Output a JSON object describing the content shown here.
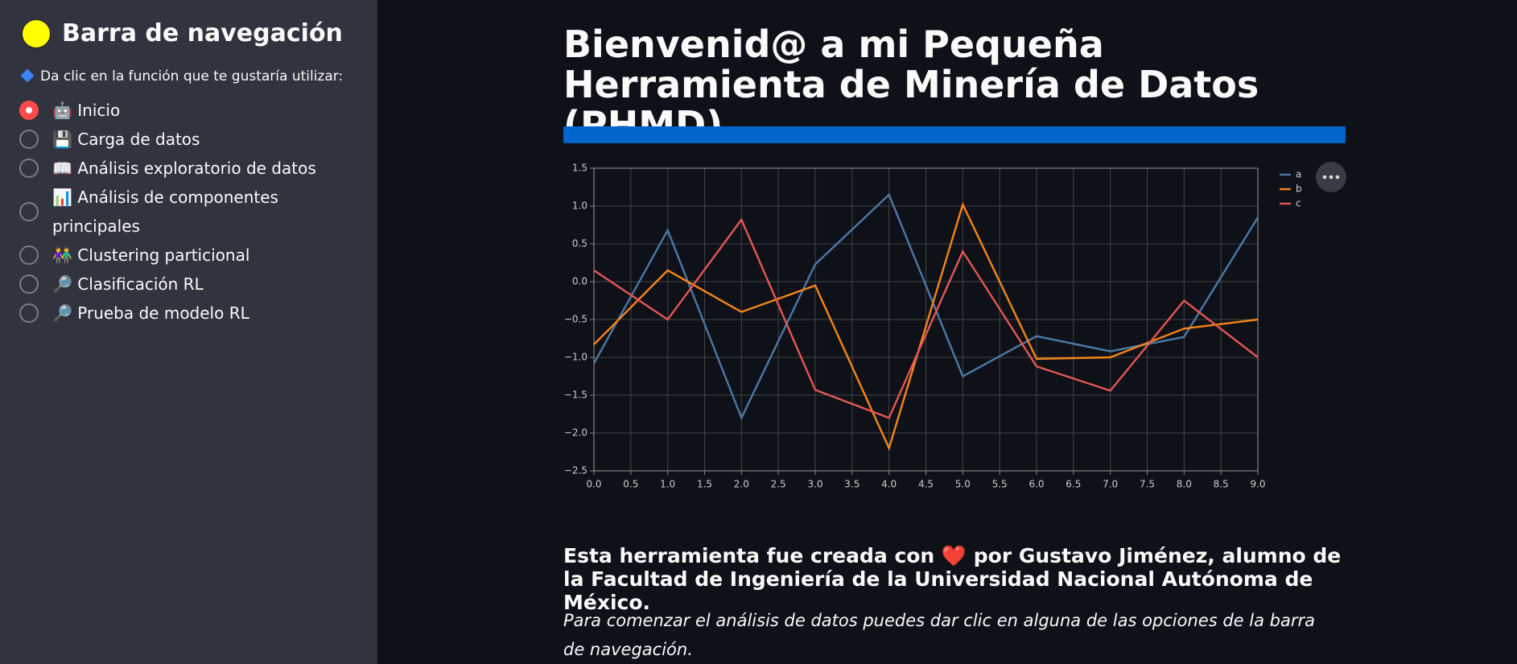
{
  "sidebar": {
    "title": "Barra de navegación",
    "prompt": "Da clic en la función que te gustaría utilizar:",
    "options": [
      "🤖 Inicio",
      "💾 Carga de datos",
      "📖 Análisis exploratorio de datos",
      "📊 Análisis de componentes principales",
      "👫 Clustering particional",
      "🔎 Clasificación RL",
      "🔎 Prueba de modelo RL"
    ],
    "selected": 0
  },
  "main": {
    "title": "Bienvenid@ a mi Pequeña Herramienta de Minería de Datos (PHMD)",
    "heading": "Esta herramienta fue creada con ❤️ por Gustavo Jiménez, alumno de la Facultad de Ingeniería de la Universidad Nacional Autónoma de México.",
    "note": "Para comenzar el análisis de datos puedes dar clic en alguna de las opciones de la barra de navegación."
  },
  "chart_data": {
    "type": "line",
    "x": [
      0,
      1,
      2,
      3,
      4,
      5,
      6,
      7,
      8,
      9
    ],
    "series": [
      {
        "name": "a",
        "color": "#4c78a8",
        "values": [
          -1.08,
          0.68,
          -1.8,
          0.23,
          1.15,
          -1.25,
          -0.72,
          -0.92,
          -0.73,
          0.85
        ]
      },
      {
        "name": "b",
        "color": "#f58518",
        "values": [
          -0.83,
          0.15,
          -0.4,
          -0.05,
          -2.2,
          1.02,
          -1.02,
          -1.0,
          -0.62,
          -0.5
        ]
      },
      {
        "name": "c",
        "color": "#e45756",
        "values": [
          0.15,
          -0.5,
          0.82,
          -1.43,
          -1.8,
          0.4,
          -1.12,
          -1.44,
          -0.25,
          -1.0
        ]
      }
    ],
    "xlim": [
      0,
      9
    ],
    "xticks": [
      {
        "value": 0,
        "label": "0.0"
      },
      0.5,
      {
        "value": 1,
        "label": "1.0"
      },
      1.5,
      {
        "value": 2,
        "label": "2.0"
      },
      2.5,
      {
        "value": 3,
        "label": "3.0"
      },
      3.5,
      {
        "value": 4,
        "label": "4.0"
      },
      4.5,
      {
        "value": 5,
        "label": "5.0"
      },
      5.5,
      {
        "value": 6,
        "label": "6.0"
      },
      6.5,
      {
        "value": 7,
        "label": "7.0"
      },
      7.5,
      {
        "value": 8,
        "label": "8.0"
      },
      8.5,
      {
        "value": 9,
        "label": "9.0"
      }
    ],
    "ylim": [
      -2.5,
      1.5
    ],
    "yticks": [
      {
        "value": -2.5,
        "label": "−2.5"
      },
      {
        "value": -2,
        "label": "−2.0"
      },
      {
        "value": -1.5,
        "label": "−1.5"
      },
      {
        "value": -1,
        "label": "−1.0"
      },
      {
        "value": -0.5,
        "label": "−0.5"
      },
      {
        "value": 0,
        "label": "0.0"
      },
      0.5,
      {
        "value": 1,
        "label": "1.0"
      },
      1.5
    ],
    "grid": true
  }
}
